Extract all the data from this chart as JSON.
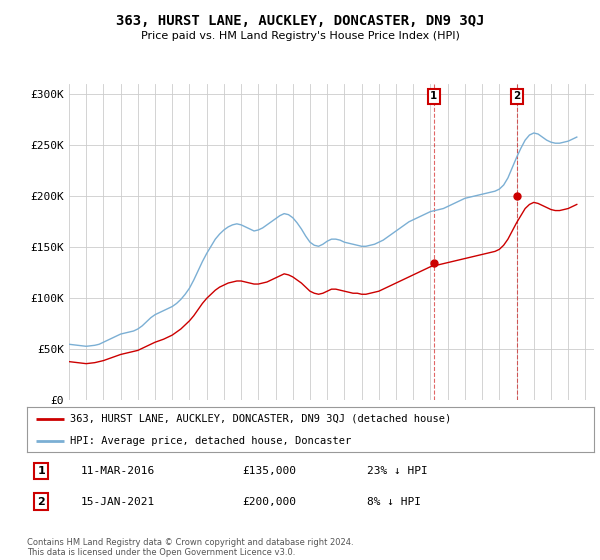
{
  "title": "363, HURST LANE, AUCKLEY, DONCASTER, DN9 3QJ",
  "subtitle": "Price paid vs. HM Land Registry's House Price Index (HPI)",
  "ylim": [
    0,
    310000
  ],
  "yticks": [
    0,
    50000,
    100000,
    150000,
    200000,
    250000,
    300000
  ],
  "ytick_labels": [
    "£0",
    "£50K",
    "£100K",
    "£150K",
    "£200K",
    "£250K",
    "£300K"
  ],
  "bg_color": "#ffffff",
  "plot_bg_color": "#ffffff",
  "red_line_color": "#cc0000",
  "blue_line_color": "#7bafd4",
  "grid_color": "#cccccc",
  "transaction1_date": "11-MAR-2016",
  "transaction1_price": "£135,000",
  "transaction1_hpi": "23% ↓ HPI",
  "transaction1_year": 2016.2,
  "transaction1_value": 135000,
  "transaction2_date": "15-JAN-2021",
  "transaction2_price": "£200,000",
  "transaction2_hpi": "8% ↓ HPI",
  "transaction2_year": 2021.04,
  "transaction2_value": 200000,
  "legend_label1": "363, HURST LANE, AUCKLEY, DONCASTER, DN9 3QJ (detached house)",
  "legend_label2": "HPI: Average price, detached house, Doncaster",
  "footer": "Contains HM Land Registry data © Crown copyright and database right 2024.\nThis data is licensed under the Open Government Licence v3.0.",
  "hpi_years": [
    1995.0,
    1995.25,
    1995.5,
    1995.75,
    1996.0,
    1996.25,
    1996.5,
    1996.75,
    1997.0,
    1997.25,
    1997.5,
    1997.75,
    1998.0,
    1998.25,
    1998.5,
    1998.75,
    1999.0,
    1999.25,
    1999.5,
    1999.75,
    2000.0,
    2000.25,
    2000.5,
    2000.75,
    2001.0,
    2001.25,
    2001.5,
    2001.75,
    2002.0,
    2002.25,
    2002.5,
    2002.75,
    2003.0,
    2003.25,
    2003.5,
    2003.75,
    2004.0,
    2004.25,
    2004.5,
    2004.75,
    2005.0,
    2005.25,
    2005.5,
    2005.75,
    2006.0,
    2006.25,
    2006.5,
    2006.75,
    2007.0,
    2007.25,
    2007.5,
    2007.75,
    2008.0,
    2008.25,
    2008.5,
    2008.75,
    2009.0,
    2009.25,
    2009.5,
    2009.75,
    2010.0,
    2010.25,
    2010.5,
    2010.75,
    2011.0,
    2011.25,
    2011.5,
    2011.75,
    2012.0,
    2012.25,
    2012.5,
    2012.75,
    2013.0,
    2013.25,
    2013.5,
    2013.75,
    2014.0,
    2014.25,
    2014.5,
    2014.75,
    2015.0,
    2015.25,
    2015.5,
    2015.75,
    2016.0,
    2016.25,
    2016.5,
    2016.75,
    2017.0,
    2017.25,
    2017.5,
    2017.75,
    2018.0,
    2018.25,
    2018.5,
    2018.75,
    2019.0,
    2019.25,
    2019.5,
    2019.75,
    2020.0,
    2020.25,
    2020.5,
    2020.75,
    2021.0,
    2021.25,
    2021.5,
    2021.75,
    2022.0,
    2022.25,
    2022.5,
    2022.75,
    2023.0,
    2023.25,
    2023.5,
    2023.75,
    2024.0,
    2024.25,
    2024.5
  ],
  "hpi_values": [
    55000,
    54500,
    54000,
    53500,
    53000,
    53500,
    54000,
    55000,
    57000,
    59000,
    61000,
    63000,
    65000,
    66000,
    67000,
    68000,
    70000,
    73000,
    77000,
    81000,
    84000,
    86000,
    88000,
    90000,
    92000,
    95000,
    99000,
    104000,
    110000,
    118000,
    127000,
    136000,
    144000,
    151000,
    158000,
    163000,
    167000,
    170000,
    172000,
    173000,
    172000,
    170000,
    168000,
    166000,
    167000,
    169000,
    172000,
    175000,
    178000,
    181000,
    183000,
    182000,
    179000,
    174000,
    168000,
    161000,
    155000,
    152000,
    151000,
    153000,
    156000,
    158000,
    158000,
    157000,
    155000,
    154000,
    153000,
    152000,
    151000,
    151000,
    152000,
    153000,
    155000,
    157000,
    160000,
    163000,
    166000,
    169000,
    172000,
    175000,
    177000,
    179000,
    181000,
    183000,
    185000,
    186000,
    187000,
    188000,
    190000,
    192000,
    194000,
    196000,
    198000,
    199000,
    200000,
    201000,
    202000,
    203000,
    204000,
    205000,
    207000,
    211000,
    218000,
    228000,
    238000,
    247000,
    255000,
    260000,
    262000,
    261000,
    258000,
    255000,
    253000,
    252000,
    252000,
    253000,
    254000,
    256000,
    258000
  ],
  "red_years": [
    1995.0,
    1995.25,
    1995.5,
    1995.75,
    1996.0,
    1996.25,
    1996.5,
    1996.75,
    1997.0,
    1997.25,
    1997.5,
    1997.75,
    1998.0,
    1998.25,
    1998.5,
    1998.75,
    1999.0,
    1999.25,
    1999.5,
    1999.75,
    2000.0,
    2000.25,
    2000.5,
    2000.75,
    2001.0,
    2001.25,
    2001.5,
    2001.75,
    2002.0,
    2002.25,
    2002.5,
    2002.75,
    2003.0,
    2003.25,
    2003.5,
    2003.75,
    2004.0,
    2004.25,
    2004.5,
    2004.75,
    2005.0,
    2005.25,
    2005.5,
    2005.75,
    2006.0,
    2006.25,
    2006.5,
    2006.75,
    2007.0,
    2007.25,
    2007.5,
    2007.75,
    2008.0,
    2008.25,
    2008.5,
    2008.75,
    2009.0,
    2009.25,
    2009.5,
    2009.75,
    2010.0,
    2010.25,
    2010.5,
    2010.75,
    2011.0,
    2011.25,
    2011.5,
    2011.75,
    2012.0,
    2012.25,
    2012.5,
    2012.75,
    2013.0,
    2013.25,
    2013.5,
    2013.75,
    2014.0,
    2014.25,
    2014.5,
    2014.75,
    2015.0,
    2015.25,
    2015.5,
    2015.75,
    2016.0,
    2016.25,
    2016.5,
    2016.75,
    2017.0,
    2017.25,
    2017.5,
    2017.75,
    2018.0,
    2018.25,
    2018.5,
    2018.75,
    2019.0,
    2019.25,
    2019.5,
    2019.75,
    2020.0,
    2020.25,
    2020.5,
    2020.75,
    2021.0,
    2021.25,
    2021.5,
    2021.75,
    2022.0,
    2022.25,
    2022.5,
    2022.75,
    2023.0,
    2023.25,
    2023.5,
    2023.75,
    2024.0,
    2024.25,
    2024.5
  ],
  "red_values": [
    38000,
    37500,
    37000,
    36500,
    36000,
    36500,
    37000,
    38000,
    39000,
    40500,
    42000,
    43500,
    45000,
    46000,
    47000,
    48000,
    49000,
    51000,
    53000,
    55000,
    57000,
    58500,
    60000,
    62000,
    64000,
    67000,
    70000,
    74000,
    78000,
    83000,
    89000,
    95000,
    100000,
    104000,
    108000,
    111000,
    113000,
    115000,
    116000,
    117000,
    117000,
    116000,
    115000,
    114000,
    114000,
    115000,
    116000,
    118000,
    120000,
    122000,
    124000,
    123000,
    121000,
    118000,
    115000,
    111000,
    107000,
    105000,
    104000,
    105000,
    107000,
    109000,
    109000,
    108000,
    107000,
    106000,
    105000,
    105000,
    104000,
    104000,
    105000,
    106000,
    107000,
    109000,
    111000,
    113000,
    115000,
    117000,
    119000,
    121000,
    123000,
    125000,
    127000,
    129000,
    131000,
    132000,
    133000,
    134000,
    135000,
    136000,
    137000,
    138000,
    139000,
    140000,
    141000,
    142000,
    143000,
    144000,
    145000,
    146000,
    148000,
    152000,
    158000,
    166000,
    174000,
    181000,
    188000,
    192000,
    194000,
    193000,
    191000,
    189000,
    187000,
    186000,
    186000,
    187000,
    188000,
    190000,
    192000
  ]
}
